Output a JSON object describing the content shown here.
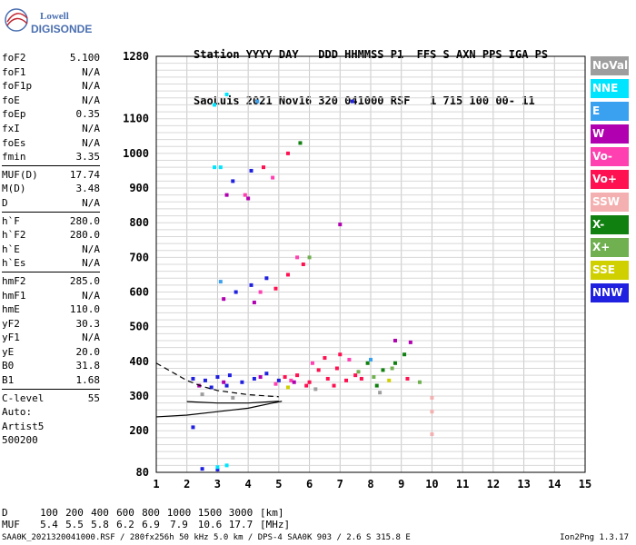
{
  "logo": {
    "line1": "Lowell",
    "line2": "DIGISONDE"
  },
  "header": {
    "line1": "Station YYYY DAY   DDD HHMMSS P1  FFS S AXN PPS IGA PS",
    "line2": "SaoLuis 2021 Nov16 320 041000 RSF   1 715 100 00- 11"
  },
  "params": [
    {
      "label": "foF2",
      "value": "5.100"
    },
    {
      "label": "foF1",
      "value": "N/A"
    },
    {
      "label": "foF1p",
      "value": "N/A"
    },
    {
      "label": "foE",
      "value": "N/A"
    },
    {
      "label": "foEp",
      "value": "0.35"
    },
    {
      "label": "fxI",
      "value": "N/A"
    },
    {
      "label": "foEs",
      "value": "N/A"
    },
    {
      "label": "fmin",
      "value": "3.35"
    },
    {
      "label": "MUF(D)",
      "value": "17.74"
    },
    {
      "label": "M(D)",
      "value": "3.48"
    },
    {
      "label": "D",
      "value": "N/A"
    },
    {
      "label": "h`F",
      "value": "280.0"
    },
    {
      "label": "h`F2",
      "value": "280.0"
    },
    {
      "label": "h`E",
      "value": "N/A"
    },
    {
      "label": "h`Es",
      "value": "N/A"
    },
    {
      "label": "hmF2",
      "value": "285.0"
    },
    {
      "label": "hmF1",
      "value": "N/A"
    },
    {
      "label": "hmE",
      "value": "110.0"
    },
    {
      "label": "yF2",
      "value": "30.3"
    },
    {
      "label": "yF1",
      "value": "N/A"
    },
    {
      "label": "yE",
      "value": "20.0"
    },
    {
      "label": "B0",
      "value": "31.8"
    },
    {
      "label": "B1",
      "value": "1.68"
    },
    {
      "label": "C-level",
      "value": "55"
    }
  ],
  "auto": {
    "line1": "Auto:",
    "line2": "Artist5",
    "line3": "500200"
  },
  "legend": [
    {
      "label": "NoVal",
      "color": "#9e9e9e"
    },
    {
      "label": "NNE",
      "color": "#00e5ff"
    },
    {
      "label": "E",
      "color": "#3aa0f0"
    },
    {
      "label": "W",
      "color": "#b000b0"
    },
    {
      "label": "Vo-",
      "color": "#ff40b0"
    },
    {
      "label": "Vo+",
      "color": "#ff1050"
    },
    {
      "label": "SSW",
      "color": "#f4b0b0"
    },
    {
      "label": "X-",
      "color": "#108010"
    },
    {
      "label": "X+",
      "color": "#70b050"
    },
    {
      "label": "SSE",
      "color": "#d0d000"
    },
    {
      "label": "NNW",
      "color": "#2020e0"
    }
  ],
  "footer": {
    "d_label": "D",
    "d_values": [
      "100",
      "200",
      "400",
      "600",
      "800",
      "1000",
      "1500",
      "3000"
    ],
    "d_unit": "[km]",
    "muf_label": "MUF",
    "muf_values": [
      "5.4",
      "5.5",
      "5.8",
      "6.2",
      "6.9",
      "7.9",
      "10.6",
      "17.7"
    ],
    "muf_unit": "[MHz]",
    "file_line": "SAA0K_2021320041000.RSF / 280fx256h 50 kHz 5.0 km / DPS-4 SAA0K 903 / 2.6 S 315.8 E",
    "version": "Ion2Png 1.3.17"
  },
  "chart_data": {
    "type": "scatter",
    "xlim": [
      1,
      15
    ],
    "x_ticks": [
      1,
      2,
      3,
      4,
      5,
      6,
      7,
      8,
      9,
      10,
      11,
      12,
      13,
      14,
      15
    ],
    "ylim": [
      80,
      1280
    ],
    "y_ticks": [
      80,
      200,
      300,
      400,
      500,
      600,
      700,
      800,
      900,
      1000,
      1100,
      1280
    ],
    "grid": true,
    "legend_position": "right",
    "series": [
      {
        "name": "NNW",
        "color": "#2020e0",
        "points": [
          [
            2.2,
            350
          ],
          [
            2.6,
            345
          ],
          [
            3.0,
            355
          ],
          [
            3.4,
            360
          ],
          [
            3.8,
            340
          ],
          [
            4.2,
            350
          ],
          [
            4.6,
            365
          ],
          [
            5.0,
            345
          ],
          [
            2.8,
            325
          ],
          [
            3.3,
            330
          ],
          [
            3.6,
            600
          ],
          [
            4.1,
            620
          ],
          [
            4.6,
            640
          ],
          [
            3.5,
            920
          ],
          [
            4.1,
            950
          ],
          [
            2.5,
            90
          ],
          [
            3.0,
            88
          ],
          [
            2.2,
            210
          ],
          [
            7.4,
            1150
          ]
        ]
      },
      {
        "name": "Vo+",
        "color": "#ff1050",
        "points": [
          [
            5.2,
            355
          ],
          [
            5.6,
            360
          ],
          [
            6.0,
            340
          ],
          [
            6.3,
            375
          ],
          [
            6.6,
            350
          ],
          [
            6.9,
            380
          ],
          [
            7.2,
            345
          ],
          [
            7.5,
            360
          ],
          [
            6.5,
            410
          ],
          [
            7.0,
            420
          ],
          [
            5.9,
            330
          ],
          [
            6.8,
            330
          ],
          [
            7.7,
            350
          ],
          [
            9.2,
            350
          ],
          [
            4.9,
            610
          ],
          [
            5.3,
            650
          ],
          [
            5.8,
            680
          ],
          [
            4.5,
            960
          ],
          [
            5.3,
            1000
          ]
        ]
      },
      {
        "name": "Vo-",
        "color": "#ff40b0",
        "points": [
          [
            4.9,
            335
          ],
          [
            5.4,
            345
          ],
          [
            6.1,
            395
          ],
          [
            7.3,
            405
          ],
          [
            4.4,
            600
          ],
          [
            5.6,
            700
          ],
          [
            4.8,
            930
          ],
          [
            3.9,
            880
          ]
        ]
      },
      {
        "name": "W",
        "color": "#b000b0",
        "points": [
          [
            2.4,
            330
          ],
          [
            3.2,
            340
          ],
          [
            4.4,
            355
          ],
          [
            5.5,
            340
          ],
          [
            8.8,
            460
          ],
          [
            9.3,
            455
          ],
          [
            3.2,
            580
          ],
          [
            4.2,
            570
          ],
          [
            3.3,
            880
          ],
          [
            4.0,
            870
          ],
          [
            7.0,
            795
          ]
        ]
      },
      {
        "name": "X-",
        "color": "#108010",
        "points": [
          [
            7.9,
            395
          ],
          [
            8.4,
            375
          ],
          [
            8.8,
            395
          ],
          [
            9.1,
            420
          ],
          [
            8.2,
            330
          ],
          [
            5.7,
            1030
          ]
        ]
      },
      {
        "name": "X+",
        "color": "#70b050",
        "points": [
          [
            7.6,
            370
          ],
          [
            8.1,
            355
          ],
          [
            8.7,
            380
          ],
          [
            9.6,
            340
          ],
          [
            6.0,
            700
          ]
        ]
      },
      {
        "name": "NNE",
        "color": "#00e5ff",
        "points": [
          [
            3.0,
            95
          ],
          [
            3.3,
            100
          ],
          [
            2.9,
            960
          ],
          [
            3.1,
            960
          ],
          [
            2.9,
            1140
          ],
          [
            3.3,
            1170
          ]
        ]
      },
      {
        "name": "E",
        "color": "#3aa0f0",
        "points": [
          [
            3.1,
            630
          ],
          [
            4.3,
            1150
          ],
          [
            8.0,
            405
          ]
        ]
      },
      {
        "name": "SSE",
        "color": "#d0d000",
        "points": [
          [
            5.3,
            325
          ],
          [
            8.6,
            345
          ]
        ]
      },
      {
        "name": "SSW",
        "color": "#f4b0b0",
        "points": [
          [
            10.0,
            190
          ],
          [
            10.0,
            255
          ],
          [
            10.0,
            295
          ]
        ]
      },
      {
        "name": "NoVal",
        "color": "#9e9e9e",
        "points": [
          [
            2.5,
            305
          ],
          [
            3.5,
            295
          ],
          [
            6.2,
            320
          ],
          [
            8.3,
            310
          ]
        ]
      }
    ],
    "trace_lines": [
      {
        "style": "solid",
        "points": [
          [
            1.0,
            240
          ],
          [
            2.0,
            245
          ],
          [
            3.0,
            255
          ],
          [
            4.0,
            265
          ],
          [
            4.8,
            280
          ],
          [
            5.1,
            285
          ]
        ]
      },
      {
        "style": "solid",
        "points": [
          [
            2.0,
            284
          ],
          [
            3.0,
            280
          ],
          [
            4.0,
            280
          ],
          [
            5.0,
            285
          ]
        ]
      },
      {
        "style": "dashed",
        "points": [
          [
            1.0,
            395
          ],
          [
            1.5,
            370
          ],
          [
            2.0,
            345
          ],
          [
            2.5,
            328
          ],
          [
            3.0,
            316
          ],
          [
            4.0,
            304
          ],
          [
            5.0,
            298
          ]
        ]
      }
    ]
  }
}
